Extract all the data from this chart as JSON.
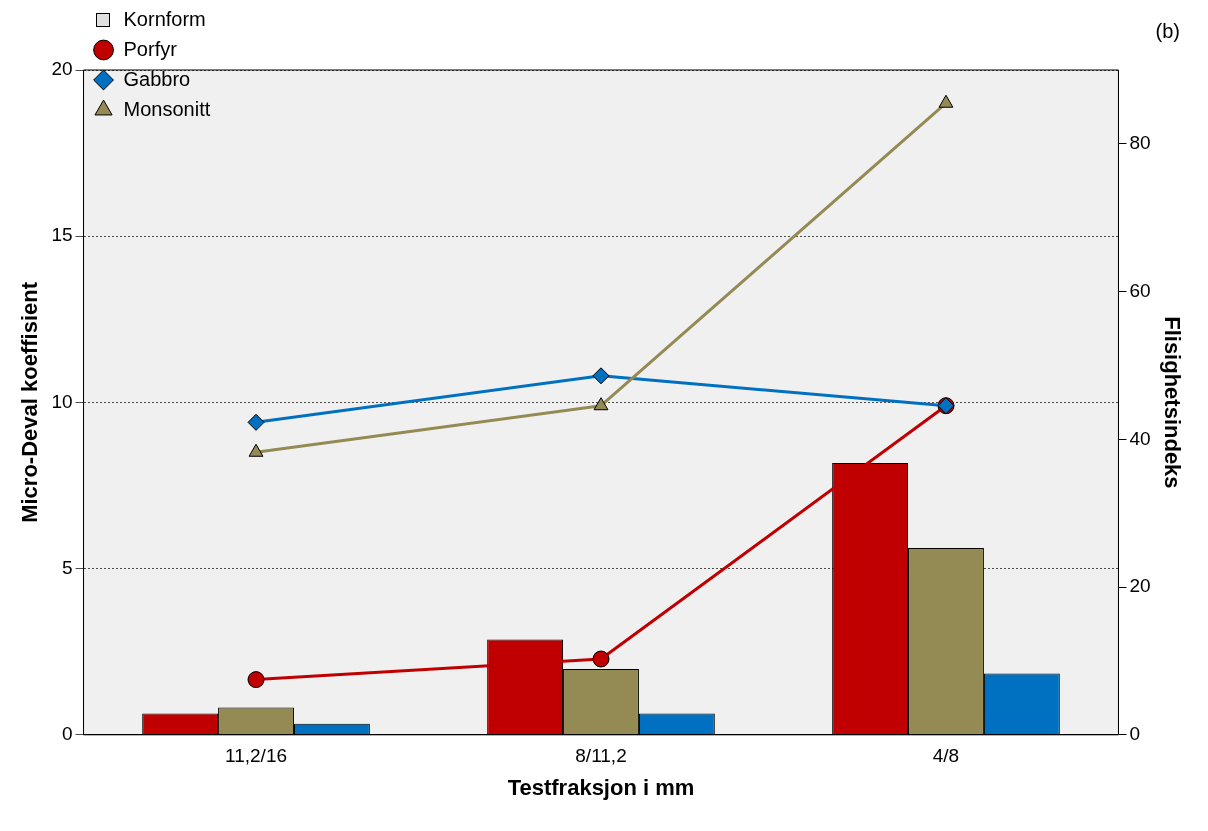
{
  "chart_data": {
    "type": "bar",
    "xlabel": "Testfraksjon i mm",
    "ylabel": "Micro-Deval koeffisient",
    "y2label": "Flisighetsindeks",
    "legend_title": "Kornform",
    "annotations": [
      "(b)"
    ],
    "categories": [
      "11,2/16",
      "8/11,2",
      "4/8"
    ],
    "series": [
      {
        "axis": "y2",
        "color": "#c00000",
        "values": [
          2.9,
          12.9,
          36.8
        ]
      },
      {
        "axis": "y2",
        "color": "#948a54",
        "values": [
          3.7,
          8.9,
          25.3
        ]
      },
      {
        "axis": "y2",
        "color": "#0070c0",
        "values": [
          1.5,
          2.9,
          8.3
        ]
      },
      {
        "type": "line",
        "name": "Porfyr",
        "color": "#c00000",
        "marker": "circle",
        "values": [
          1.66,
          2.28,
          9.9
        ]
      },
      {
        "type": "line",
        "name": "Gabbro",
        "color": "#0070c0",
        "marker": "diamond",
        "values": [
          9.4,
          10.8,
          9.9
        ]
      },
      {
        "type": "line",
        "name": "Monsonitt",
        "color": "#948a54",
        "marker": "triangle",
        "values": [
          8.5,
          9.9,
          19.0
        ]
      }
    ],
    "ylim": [
      0,
      20
    ],
    "yticks": [
      0,
      5,
      10,
      15,
      20
    ],
    "y2lim": [
      0,
      90
    ],
    "y2ticks": [
      0,
      20,
      40,
      60,
      80
    ],
    "grid": "y",
    "legend": "top left"
  }
}
